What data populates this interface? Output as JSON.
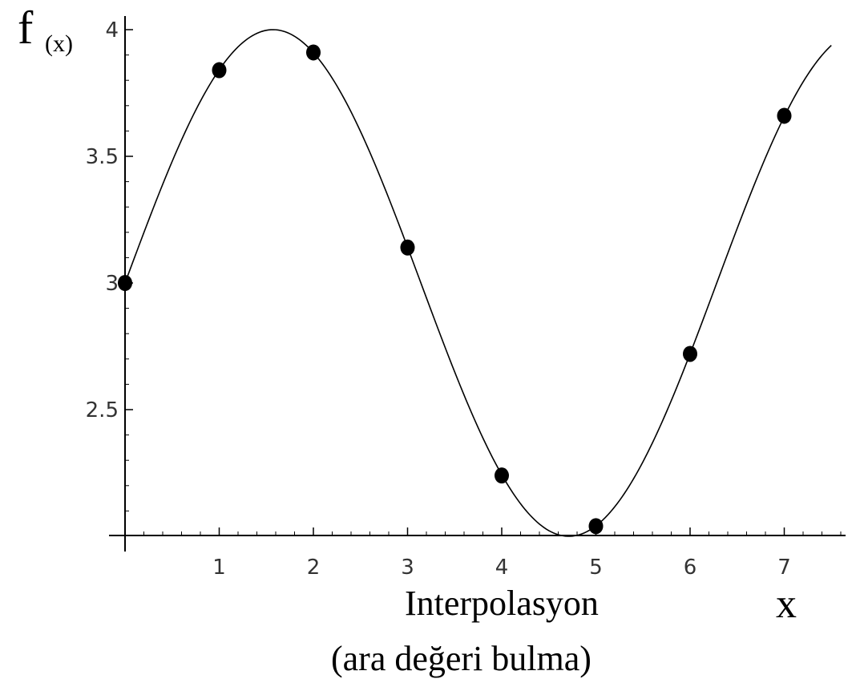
{
  "chart_data": {
    "type": "line",
    "ylabel_main": "f",
    "ylabel_sub": "(x)",
    "xlabel": "x",
    "caption_line1": "Interpolasyon",
    "caption_line2": "(ara değeri bulma)",
    "xlim": [
      0,
      7.6
    ],
    "ylim": [
      2.0,
      4.0
    ],
    "x_ticks": [
      "1",
      "2",
      "3",
      "4",
      "5",
      "6",
      "7"
    ],
    "y_ticks": [
      {
        "value": 2.5,
        "label": "2.5"
      },
      {
        "value": 3.0,
        "label": "3"
      },
      {
        "value": 3.5,
        "label": "3.5"
      },
      {
        "value": 4.0,
        "label": "4"
      }
    ],
    "curve_function": "3 + sin(x)",
    "curve_x_range": [
      0,
      7.5
    ],
    "points": [
      {
        "x": 0,
        "y": 3.0
      },
      {
        "x": 1,
        "y": 3.84
      },
      {
        "x": 2,
        "y": 3.91
      },
      {
        "x": 3,
        "y": 3.14
      },
      {
        "x": 4,
        "y": 2.24
      },
      {
        "x": 5,
        "y": 2.04
      },
      {
        "x": 6,
        "y": 2.72
      },
      {
        "x": 7,
        "y": 3.66
      }
    ],
    "grid": false,
    "legend": "none"
  }
}
